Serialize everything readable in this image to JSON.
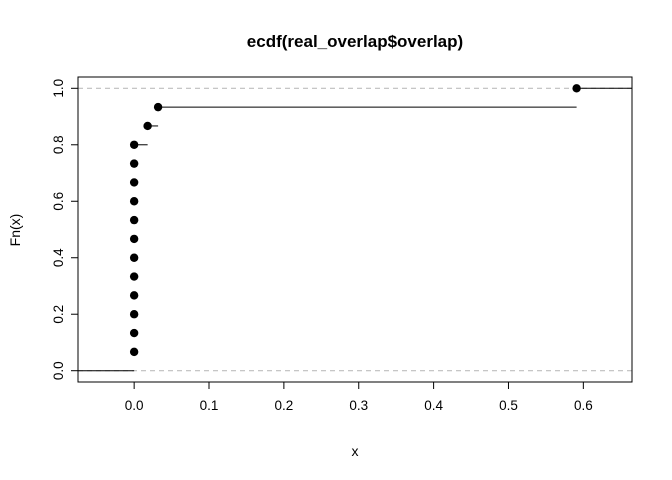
{
  "chart_data": {
    "type": "step",
    "title": "ecdf(real_overlap$overlap)",
    "xlabel": "x",
    "ylabel": "Fn(x)",
    "xlim": [
      -0.075,
      0.665
    ],
    "ylim": [
      -0.04,
      1.04
    ],
    "xticks": [
      "0.0",
      "0.1",
      "0.2",
      "0.3",
      "0.4",
      "0.5",
      "0.6"
    ],
    "yticks": [
      "0.0",
      "0.2",
      "0.4",
      "0.6",
      "0.8",
      "1.0"
    ],
    "reference_lines": [
      0,
      1
    ],
    "grid": false,
    "legend": "none",
    "points": [
      {
        "x": 0.0,
        "y": 0.0667
      },
      {
        "x": 0.0,
        "y": 0.1333
      },
      {
        "x": 0.0,
        "y": 0.2
      },
      {
        "x": 0.0,
        "y": 0.2667
      },
      {
        "x": 0.0,
        "y": 0.3333
      },
      {
        "x": 0.0,
        "y": 0.4
      },
      {
        "x": 0.0,
        "y": 0.4667
      },
      {
        "x": 0.0,
        "y": 0.5333
      },
      {
        "x": 0.0,
        "y": 0.6
      },
      {
        "x": 0.0,
        "y": 0.6667
      },
      {
        "x": 0.0,
        "y": 0.7333
      },
      {
        "x": 0.0,
        "y": 0.8
      },
      {
        "x": 0.018,
        "y": 0.8667
      },
      {
        "x": 0.032,
        "y": 0.9333
      },
      {
        "x": 0.591,
        "y": 1.0
      }
    ],
    "colors": {
      "line": "#000000",
      "reference": "#bebebe"
    }
  }
}
